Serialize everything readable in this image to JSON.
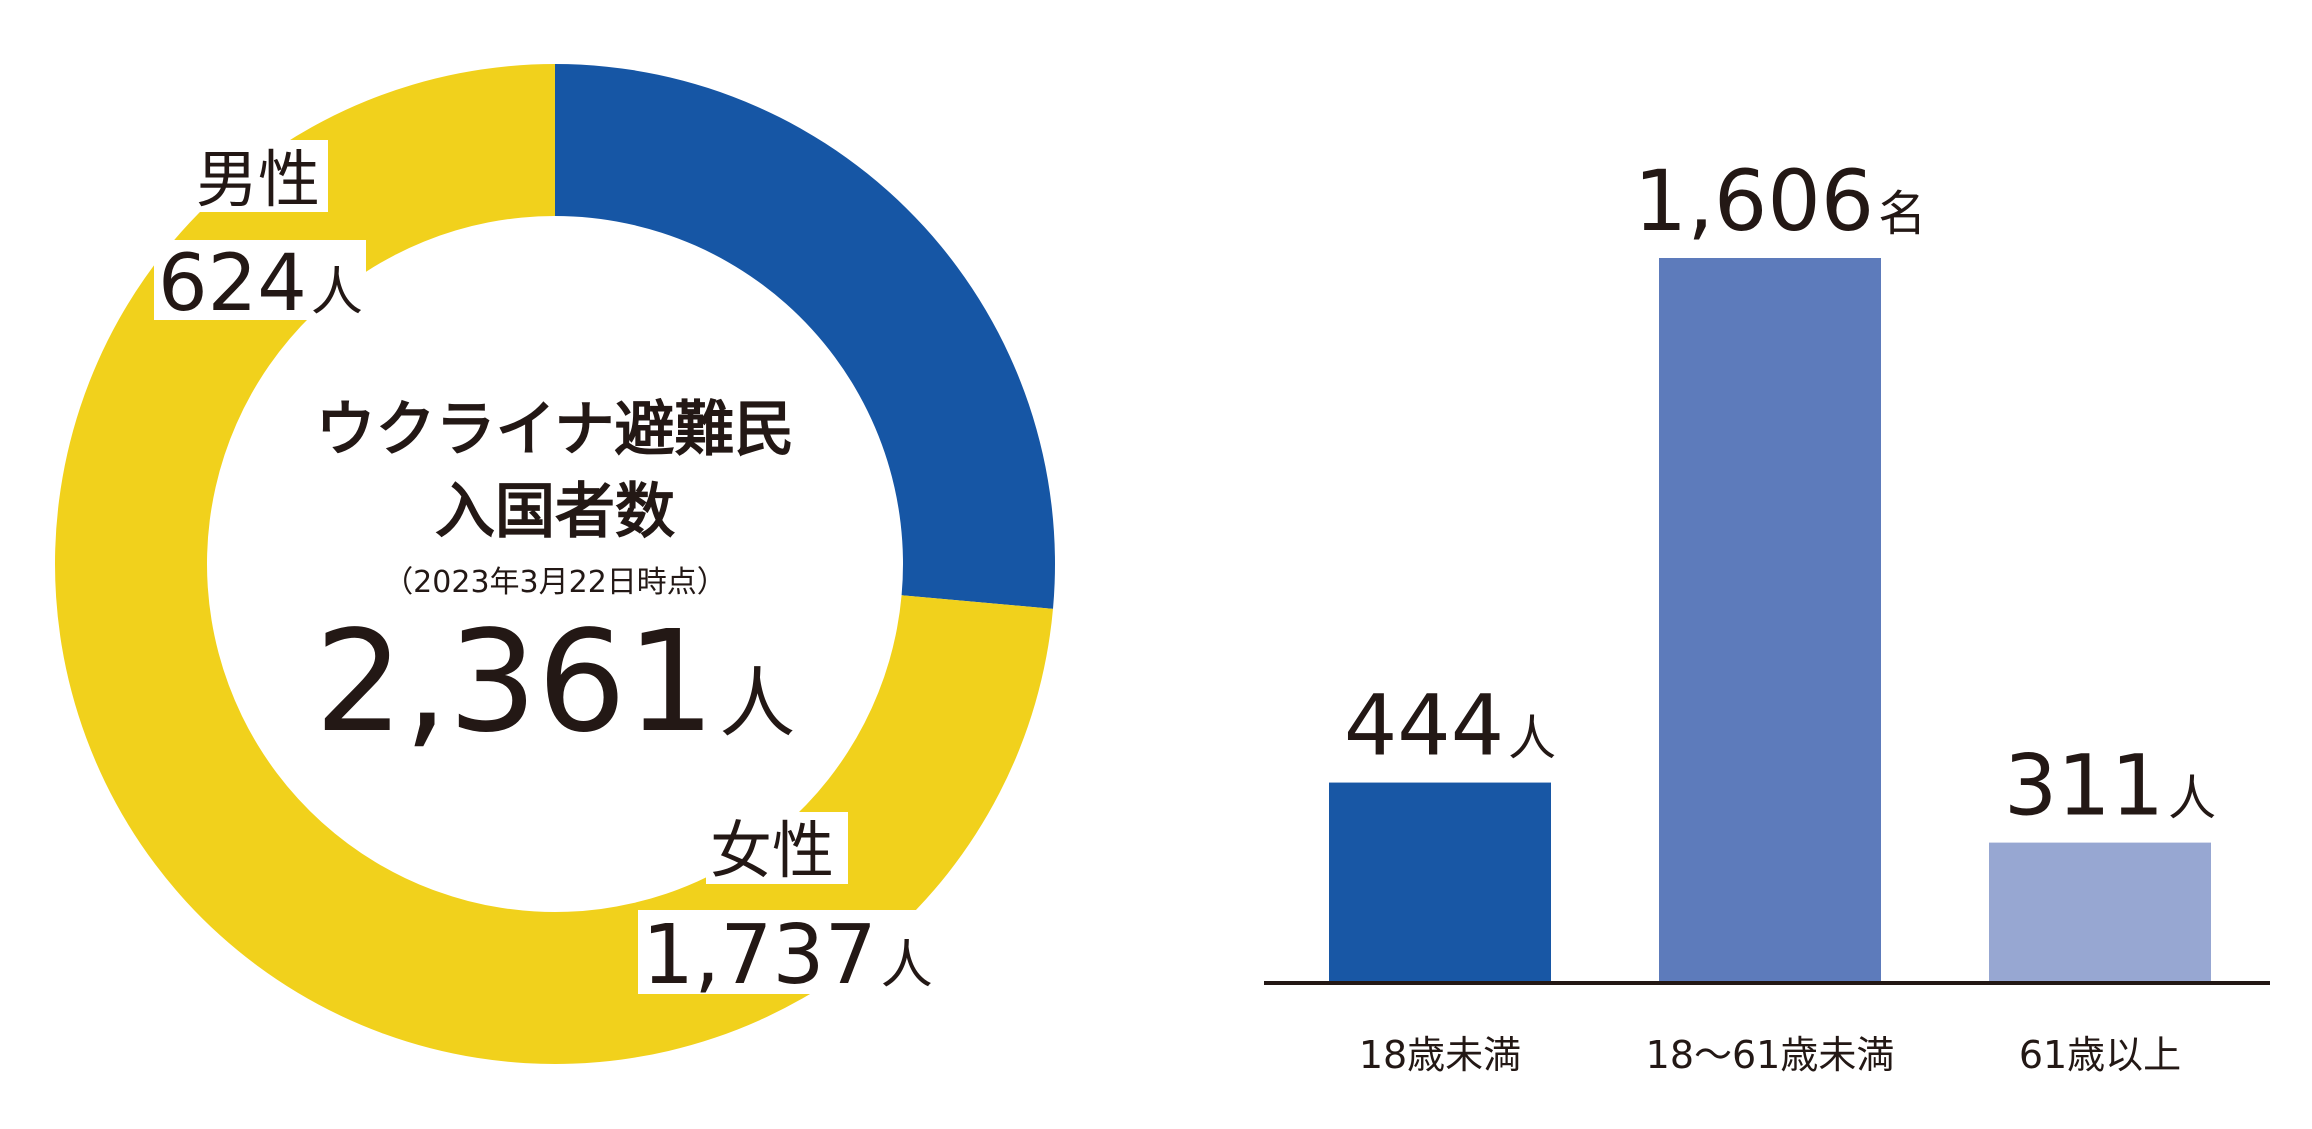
{
  "chart_data": [
    {
      "type": "pie",
      "donut": true,
      "title_lines": [
        "ウクライナ避難民",
        "入国者数"
      ],
      "date_note": "（2023年3月22日時点）",
      "total": {
        "value": 2361,
        "text": "2,361",
        "unit": "人"
      },
      "slices": [
        {
          "label": "男性",
          "value": 624,
          "text": "624",
          "unit": "人",
          "color": "#1656a5"
        },
        {
          "label": "女性",
          "value": 1737,
          "text": "1,737",
          "unit": "人",
          "color": "#f1d11c"
        }
      ]
    },
    {
      "type": "bar",
      "categories": [
        "18歳未満",
        "18〜61歳未満",
        "61歳以上"
      ],
      "values": [
        444,
        1606,
        311
      ],
      "value_texts": [
        "444",
        "1,606",
        "311"
      ],
      "units": [
        "人",
        "名",
        "人"
      ],
      "colors": [
        "#1857a5",
        "#5d7bbb",
        "#97a7d2"
      ],
      "ylim": [
        0,
        1606
      ]
    }
  ]
}
